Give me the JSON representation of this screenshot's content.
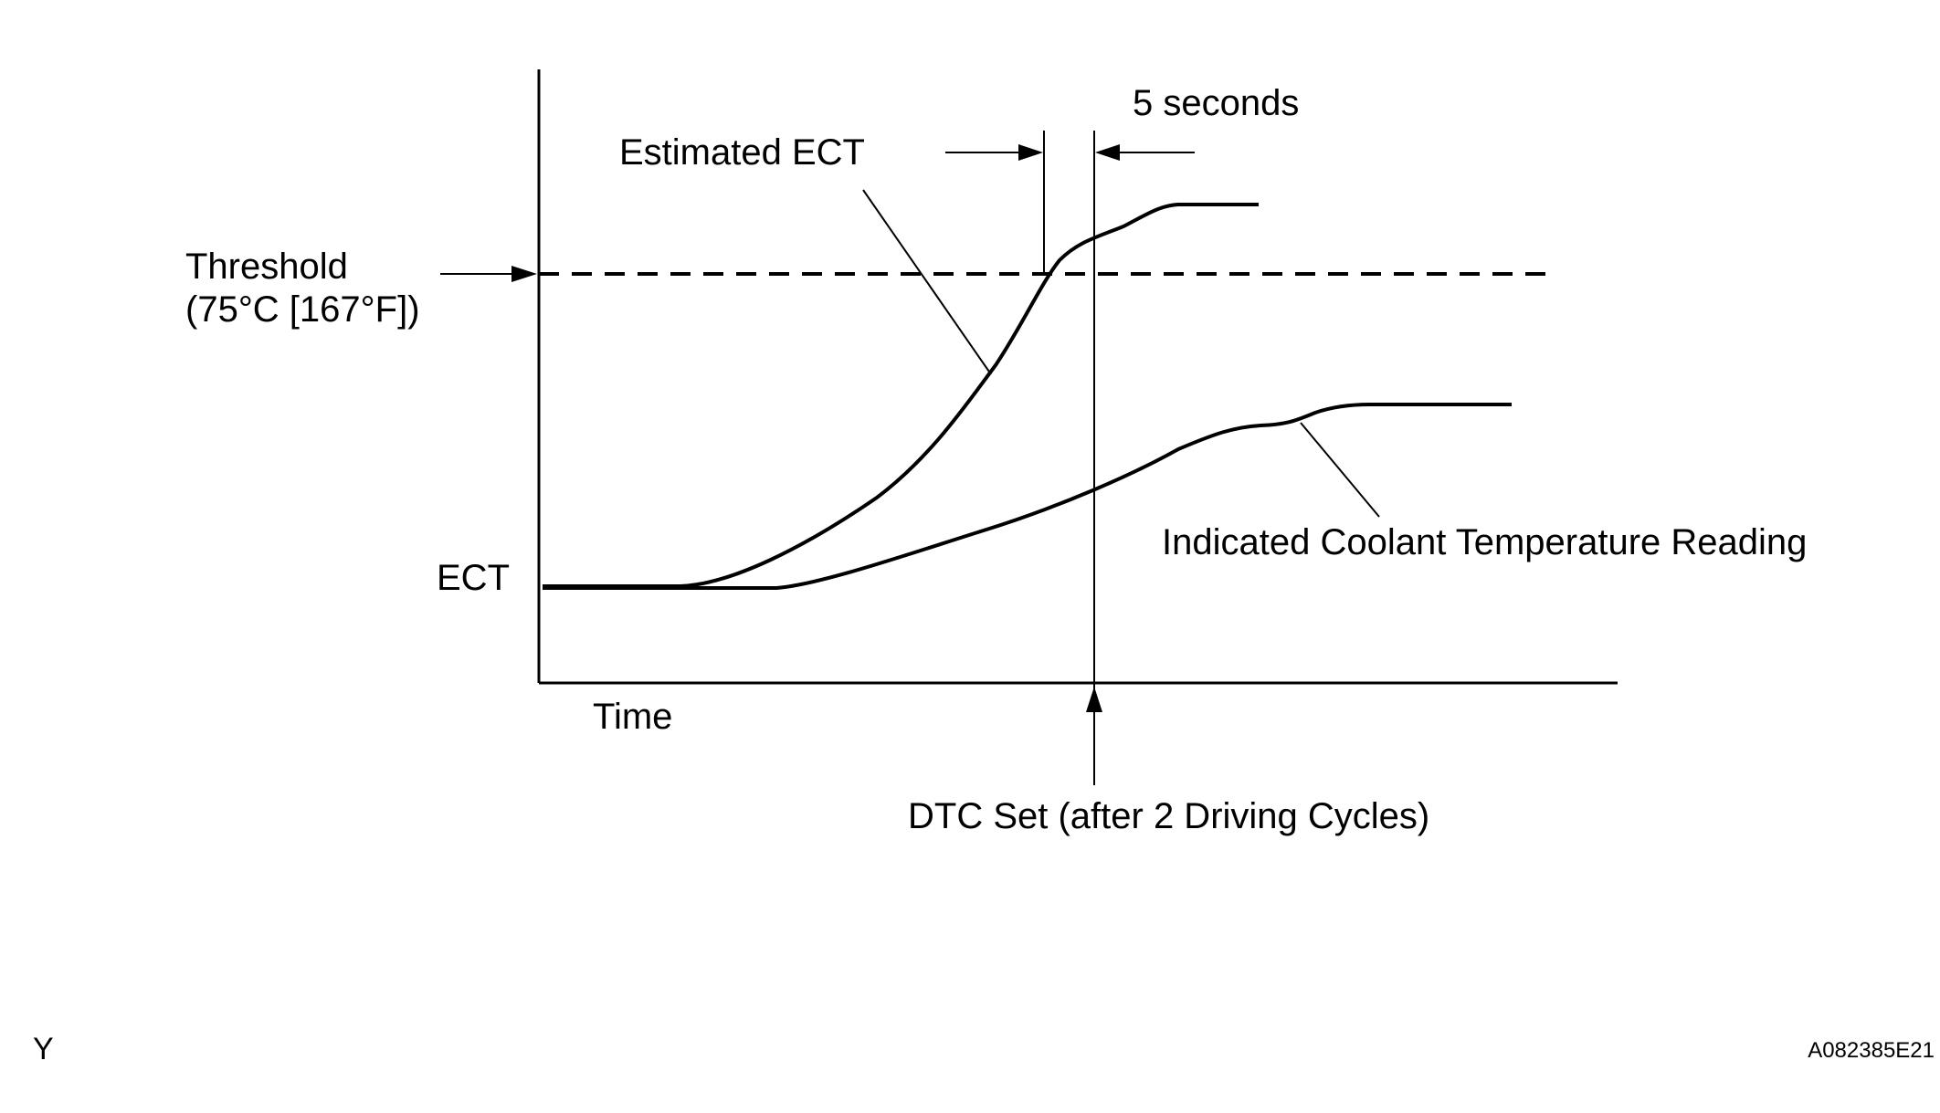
{
  "diagram": {
    "labels": {
      "five_seconds": "5 seconds",
      "estimated_ect": "Estimated ECT",
      "threshold_line1": "Threshold",
      "threshold_line2": "(75°C [167°F])",
      "ect": "ECT",
      "time": "Time",
      "indicated_reading": "Indicated Coolant Temperature Reading",
      "dtc_set": "DTC Set (after 2 Driving Cycles)"
    },
    "corner_mark": "Y",
    "figure_code": "A082385E21",
    "colors": {
      "ink": "#000000",
      "background": "#ffffff"
    }
  }
}
